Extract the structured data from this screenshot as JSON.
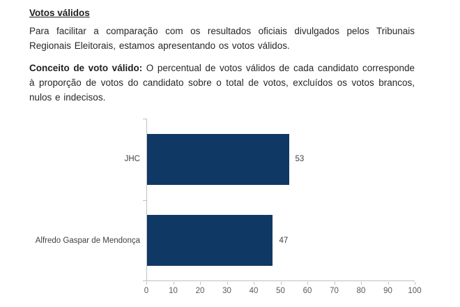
{
  "document": {
    "title": "Votos válidos",
    "paragraph1": "Para facilitar a comparação com os resultados oficiais divulgados pelos Tribunais Regionais Eleitorais, estamos apresentando os votos válidos.",
    "paragraph2_bold": "Conceito de voto válido:",
    "paragraph2_rest": " O percentual de votos válidos de cada candidato corresponde à proporção de votos do candidato sobre o total de votos, excluídos os votos brancos, nulos e indecisos."
  },
  "chart_data": {
    "type": "bar",
    "orientation": "horizontal",
    "title": "",
    "xlabel": "",
    "ylabel": "",
    "categories": [
      "JHC",
      "Alfredo Gaspar de Mendonça"
    ],
    "values": [
      53,
      47
    ],
    "xlim": [
      0,
      100
    ],
    "xticks": [
      0,
      10,
      20,
      30,
      40,
      50,
      60,
      70,
      80,
      90,
      100
    ],
    "data_labels": [
      53,
      47
    ],
    "bar_color": "#103864",
    "axis_color": "#bfbfbf",
    "tick_label_color": "#595959",
    "label_color": "#404040",
    "grid": false,
    "legend": false
  }
}
